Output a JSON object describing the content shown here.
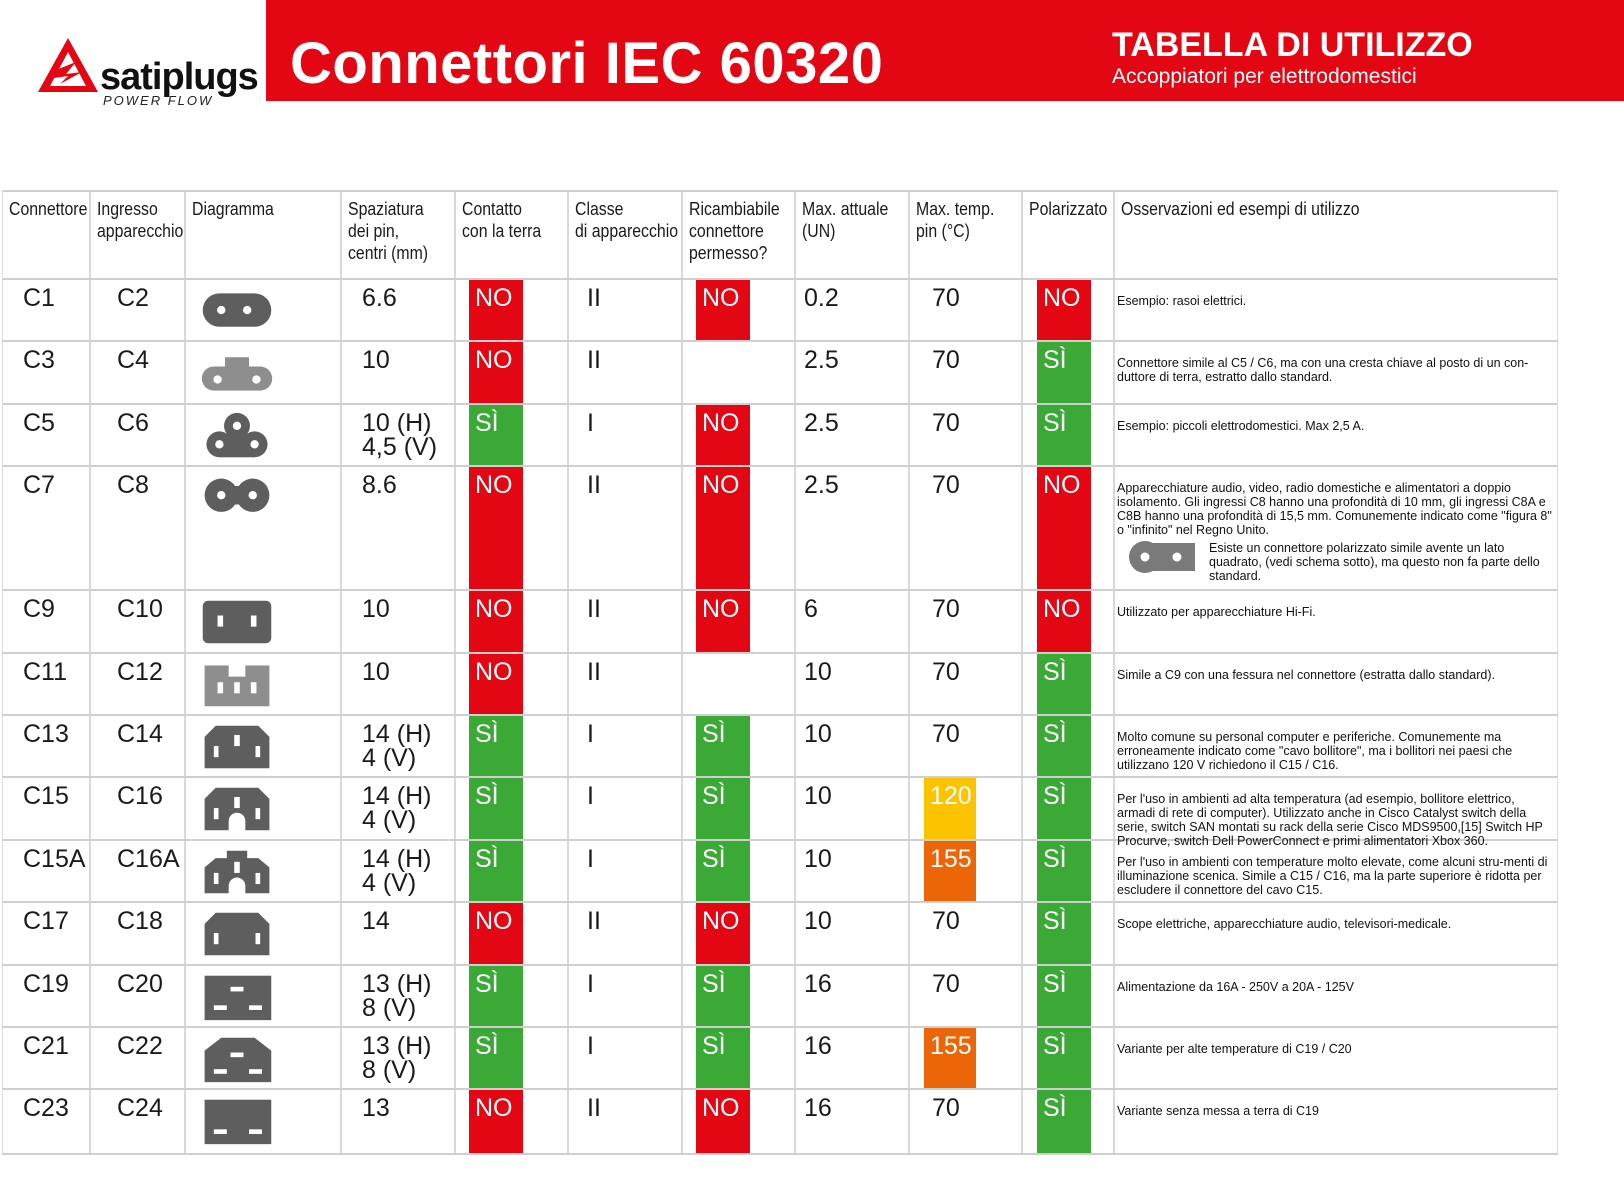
{
  "brand": {
    "name": "satiplugs",
    "tagline": "POWER FLOW",
    "color": "#e30613"
  },
  "banner": {
    "title": "Connettori IEC 60320",
    "subtitle": "TABELLA DI UTILIZZO",
    "subtitle2": "Accoppiatori per elettrodomestici"
  },
  "colors": {
    "no": "#e30613",
    "si": "#3aa935",
    "temp120": "#fcc300",
    "temp155": "#ec6608"
  },
  "headers": [
    "Connettore",
    "Ingresso\napparecchio",
    "Diagramma",
    "Spaziatura\ndei pin,\ncentri (mm)",
    "Contatto\ncon la terra",
    "Classe\ndi apparecchio",
    "Ricambiabile\nconnettore\npermesso?",
    "Max. attuale\n(UN)",
    "Max. temp.\npin (°C)",
    "Polarizzato",
    "Osservazioni ed esempi di utilizzo"
  ],
  "rows": [
    {
      "connector": "C1",
      "inlet": "C2",
      "diagram": "c1-oval-2pin-icon",
      "spacing": "6.6",
      "earth": "NO",
      "class": "II",
      "rewire": "NO",
      "current": "0.2",
      "temp": "70",
      "temp_level": "normal",
      "polarized": "NO",
      "notes": "Esempio: rasoi elettrici."
    },
    {
      "connector": "C3",
      "inlet": "C4",
      "diagram": "c3-keyed-2pin-icon",
      "spacing": "10",
      "earth": "NO",
      "class": "II",
      "rewire": "",
      "current": "2.5",
      "temp": "70",
      "temp_level": "normal",
      "polarized": "SÌ",
      "notes": "Connettore simile al C5 / C6, ma con una cresta chiave al posto di un con-duttore di terra, estratto dallo standard."
    },
    {
      "connector": "C5",
      "inlet": "C6",
      "diagram": "c5-cloverleaf-3pin-icon",
      "spacing": "10 (H)\n4,5 (V)",
      "earth": "SÌ",
      "class": "I",
      "rewire": "NO",
      "current": "2.5",
      "temp": "70",
      "temp_level": "normal",
      "polarized": "SÌ",
      "notes": "Esempio: piccoli elettrodomestici. Max 2,5 A."
    },
    {
      "connector": "C7",
      "inlet": "C8",
      "diagram": "c7-figure8-2pin-icon",
      "spacing": "8.6",
      "earth": "NO",
      "class": "II",
      "rewire": "NO",
      "current": "2.5",
      "temp": "70",
      "temp_level": "normal",
      "polarized": "NO",
      "notes": "Apparecchiature audio, video, radio domestiche e alimentatori a doppio isolamento. Gli ingressi C8 hanno una profondità di 10 mm, gli ingressi C8A e C8B hanno una profondità di 15,5 mm. Comunemente indicato come \"figura 8\" o \"infinito\" nel Regno Unito.",
      "notes2": "Esiste un connettore polarizzato simile avente un lato quadrato, (vedi schema sotto), ma questo non fa parte dello standard."
    },
    {
      "connector": "C9",
      "inlet": "C10",
      "diagram": "c9-rect-2pin-icon",
      "spacing": "10",
      "earth": "NO",
      "class": "II",
      "rewire": "NO",
      "current": "6",
      "temp": "70",
      "temp_level": "normal",
      "polarized": "NO",
      "notes": "Utilizzato per apparecchiature Hi-Fi."
    },
    {
      "connector": "C11",
      "inlet": "C12",
      "diagram": "c11-slotted-2pin-icon",
      "spacing": "10",
      "earth": "NO",
      "class": "II",
      "rewire": "",
      "current": "10",
      "temp": "70",
      "temp_level": "normal",
      "polarized": "SÌ",
      "notes": "Simile a C9 con una fessura nel connettore (estratta dallo standard)."
    },
    {
      "connector": "C13",
      "inlet": "C14",
      "diagram": "c13-3pin-icon",
      "spacing": "14 (H)\n4 (V)",
      "earth": "SÌ",
      "class": "I",
      "rewire": "SÌ",
      "current": "10",
      "temp": "70",
      "temp_level": "normal",
      "polarized": "SÌ",
      "notes": "Molto comune su personal computer e periferiche. Comunemente ma erroneamente indicato come \"cavo bollitore\", ma i bollitori nei paesi che utilizzano 120 V richiedono il C15 / C16."
    },
    {
      "connector": "C15",
      "inlet": "C16",
      "diagram": "c15-notched-3pin-icon",
      "spacing": "14 (H)\n4 (V)",
      "earth": "SÌ",
      "class": "I",
      "rewire": "SÌ",
      "current": "10",
      "temp": "120",
      "temp_level": "high",
      "polarized": "SÌ",
      "notes": "Per l'uso in ambienti ad alta temperatura (ad esempio, bollitore elettrico, armadi di rete di computer). Utilizzato anche in Cisco Catalyst switch della serie, switch SAN montati su rack della serie Cisco MDS9500,[15] Switch HP Procurve, switch Dell PowerConnect e primi alimentatori Xbox 360."
    },
    {
      "connector": "C15A",
      "inlet": "C16A",
      "diagram": "c15a-notched-3pin-icon",
      "spacing": "14 (H)\n4 (V)",
      "earth": "SÌ",
      "class": "I",
      "rewire": "SÌ",
      "current": "10",
      "temp": "155",
      "temp_level": "very-high",
      "polarized": "SÌ",
      "notes": "Per l'uso in ambienti con temperature molto elevate, come alcuni stru-menti di illuminazione scenica. Simile a C15 / C16, ma la parte superiore è ridotta per escludere il connettore del cavo C15."
    },
    {
      "connector": "C17",
      "inlet": "C18",
      "diagram": "c17-2pin-icon",
      "spacing": "14",
      "earth": "NO",
      "class": "II",
      "rewire": "NO",
      "current": "10",
      "temp": "70",
      "temp_level": "normal",
      "polarized": "SÌ",
      "notes": "Scope elettriche, apparecchiature audio, televisori-medicale."
    },
    {
      "connector": "C19",
      "inlet": "C20",
      "diagram": "c19-3pin-icon",
      "spacing": "13 (H)\n8 (V)",
      "earth": "SÌ",
      "class": "I",
      "rewire": "SÌ",
      "current": "16",
      "temp": "70",
      "temp_level": "normal",
      "polarized": "SÌ",
      "notes": "Alimentazione da 16A - 250V  a  20A - 125V"
    },
    {
      "connector": "C21",
      "inlet": "C22",
      "diagram": "c21-3pin-icon",
      "spacing": "13 (H)\n8 (V)",
      "earth": "SÌ",
      "class": "I",
      "rewire": "SÌ",
      "current": "16",
      "temp": "155",
      "temp_level": "very-high",
      "polarized": "SÌ",
      "notes": "Variante per alte temperature di C19 / C20"
    },
    {
      "connector": "C23",
      "inlet": "C24",
      "diagram": "c23-2pin-icon",
      "spacing": "13",
      "earth": "NO",
      "class": "II",
      "rewire": "NO",
      "current": "16",
      "temp": "70",
      "temp_level": "normal",
      "polarized": "SÌ",
      "notes": "Variante senza messa a terra di C19"
    }
  ]
}
